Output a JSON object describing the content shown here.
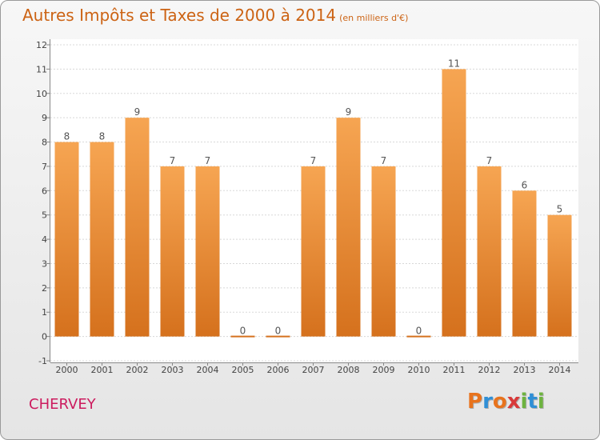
{
  "header": {
    "title": "Autres Impôts et Taxes de 2000 à 2014",
    "unit": "(en milliers d'€)"
  },
  "footer": {
    "commune": "CHERVEY",
    "logo_letters": [
      "P",
      "r",
      "o",
      "x",
      "i",
      "t",
      "i"
    ],
    "logo_colors": [
      "#e8731d",
      "#2f8fd6",
      "#e8731d",
      "#d83a3a",
      "#6db33f",
      "#2f8fd6",
      "#6db33f"
    ]
  },
  "chart_data": {
    "type": "bar",
    "title": "Autres Impôts et Taxes de 2000 à 2014",
    "xlabel": "",
    "ylabel": "",
    "categories": [
      "2000",
      "2001",
      "2002",
      "2003",
      "2004",
      "2005",
      "2006",
      "2007",
      "2008",
      "2009",
      "2010",
      "2011",
      "2012",
      "2013",
      "2014"
    ],
    "values": [
      8,
      8,
      9,
      7,
      7,
      0,
      0,
      7,
      9,
      7,
      0,
      11,
      7,
      6,
      5
    ],
    "data_labels": [
      "8",
      "8",
      "9",
      "7",
      "7",
      "0",
      "0",
      "7",
      "9",
      "7",
      "0",
      "11",
      "7",
      "6",
      "5"
    ],
    "y_ticks": [
      -1,
      0,
      1,
      2,
      3,
      4,
      5,
      6,
      7,
      8,
      9,
      10,
      11,
      12
    ],
    "y_tick_labels": [
      "-1",
      "0",
      "1",
      "2",
      "3",
      "4",
      "5",
      "6",
      "7",
      "8",
      "9",
      "10",
      "11",
      "12"
    ],
    "ylim": [
      -1,
      12
    ],
    "grid": true,
    "bar_color_top": "#f6a552",
    "bar_color_bottom": "#d5711d"
  }
}
